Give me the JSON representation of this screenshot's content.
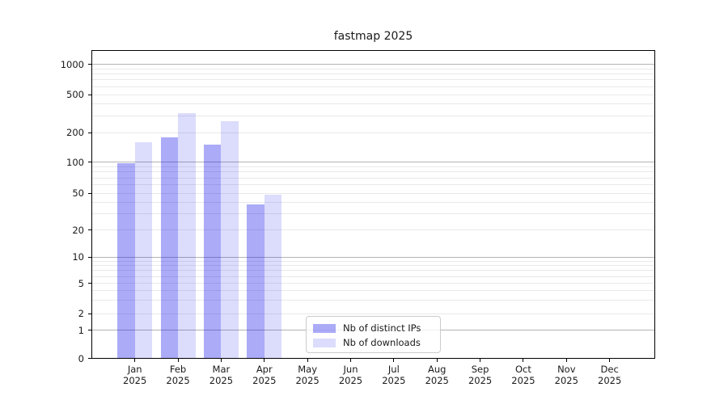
{
  "chart_data": {
    "type": "bar",
    "title": "fastmap 2025",
    "x_categories": [
      "Jan",
      "Feb",
      "Mar",
      "Apr",
      "May",
      "Jun",
      "Jul",
      "Aug",
      "Sep",
      "Oct",
      "Nov",
      "Dec"
    ],
    "x_year": "2025",
    "y_ticks": [
      0,
      1,
      2,
      5,
      10,
      20,
      50,
      100,
      200,
      500,
      1000
    ],
    "y_scale": "symlog",
    "ylim": [
      0,
      1400
    ],
    "grid": "on",
    "legend_position": "lower center",
    "series": [
      {
        "name": "Nb of distinct IPs",
        "color": "rgba(10,10,235,0.34)",
        "solid_color": "#aaaaf8",
        "values": [
          97,
          180,
          150,
          38,
          null,
          null,
          null,
          null,
          null,
          null,
          null,
          null
        ]
      },
      {
        "name": "Nb of downloads",
        "color": "rgba(10,10,235,0.14)",
        "solid_color": "#dcdcf8",
        "values": [
          160,
          320,
          265,
          48,
          null,
          null,
          null,
          null,
          null,
          null,
          null,
          null
        ]
      }
    ],
    "colors": {
      "grid_major": "#b3b3b3",
      "grid_minor": "#e9e9e9",
      "axis": "#000000",
      "text": "#1a1a1a",
      "background": "#ffffff"
    }
  }
}
